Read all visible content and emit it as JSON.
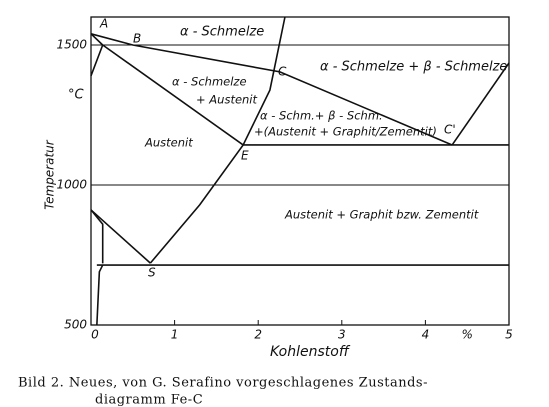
{
  "chart_data": {
    "type": "line",
    "x_label": "Kohlenstoff",
    "y_label": "Temperatur",
    "y_unit": "°C",
    "x_unit": "%",
    "xlim": [
      0,
      5
    ],
    "ylim": [
      500,
      1600
    ],
    "xticks": [
      0,
      1,
      2,
      3,
      4,
      5
    ],
    "yticks": [
      500,
      1000,
      1500
    ],
    "grid": true,
    "color": "#111",
    "series": [
      {
        "x": [
          0,
          0.5,
          2.26,
          4.32
        ],
        "values": [
          1540,
          1500,
          1404,
          1143
        ]
      },
      {
        "x": [
          4.32,
          5
        ],
        "values": [
          1143,
          1436
        ]
      },
      {
        "x": [
          0.14,
          1.82
        ],
        "values": [
          1500,
          1143
        ]
      },
      {
        "x": [
          1.82,
          5
        ],
        "values": [
          1143,
          1143
        ]
      },
      {
        "x": [
          2.32,
          2.14,
          1.82,
          1.3,
          0.71
        ],
        "values": [
          1600,
          1339,
          1143,
          929,
          721
        ]
      },
      {
        "x": [
          0.07,
          5
        ],
        "values": [
          714,
          714
        ]
      },
      {
        "x": [
          0,
          0.71
        ],
        "values": [
          911,
          721
        ]
      },
      {
        "x": [
          0,
          0.14,
          0
        ],
        "values": [
          1540,
          1500,
          1390
        ]
      },
      {
        "x": [
          0,
          0.14,
          0.14
        ],
        "values": [
          911,
          860,
          720
        ]
      },
      {
        "x": [
          0.07,
          0.1,
          0.14
        ],
        "values": [
          500,
          690,
          714
        ]
      }
    ],
    "annotations": [
      "A",
      "B",
      "C",
      "C'",
      "E",
      "S",
      "α - Schmelze",
      "α - Schmelze + β - Schmelze",
      "α - Schmelze",
      "+ Austenit",
      "α - Schm.+ β - Schm.",
      "+(Austenit + Graphit/Zementit)",
      "Austenit",
      "Austenit + Graphit bzw. Zementit"
    ]
  },
  "caption": [
    "Bild 2. Neues, von G. Serafino vorgeschlagenes Zustands-",
    "diagramm Fe-C"
  ]
}
